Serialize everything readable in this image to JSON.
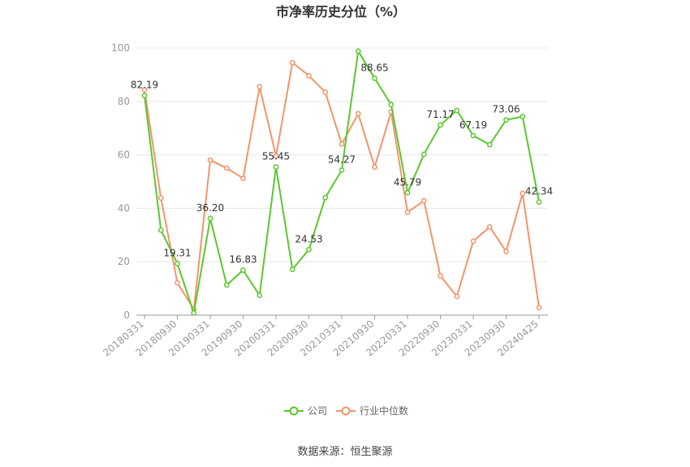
{
  "chart_data": {
    "type": "line",
    "title": "市净率历史分位（%）",
    "source": "数据来源：恒生聚源",
    "ylim": [
      0,
      100
    ],
    "yticks": [
      0,
      20,
      40,
      60,
      80,
      100
    ],
    "grid": true,
    "legend_position": "bottom",
    "x": [
      "20180331",
      "20180630",
      "20180930",
      "20181231",
      "20190331",
      "20190630",
      "20190930",
      "20191231",
      "20200331",
      "20200630",
      "20200930",
      "20201231",
      "20210331",
      "20210630",
      "20210930",
      "20211231",
      "20220331",
      "20220630",
      "20220930",
      "20221231",
      "20230331",
      "20230630",
      "20230930",
      "20231231",
      "20240425"
    ],
    "xtick_labels": [
      "20180331",
      "20180930",
      "20190331",
      "20190930",
      "20200331",
      "20200930",
      "20210331",
      "20210930",
      "20220331",
      "20220930",
      "20230331",
      "20230930",
      "20240425"
    ],
    "series": [
      {
        "name": "公司",
        "color": "#5cc72e",
        "values": [
          82.19,
          31.8,
          19.31,
          0.8,
          36.2,
          11.3,
          16.83,
          7.4,
          55.45,
          17.1,
          24.53,
          44.0,
          54.27,
          98.8,
          88.65,
          78.8,
          45.79,
          60.2,
          71.17,
          76.6,
          67.19,
          63.8,
          73.06,
          74.3,
          42.34
        ],
        "labels": [
          "82.19",
          "",
          "19.31",
          "",
          "36.20",
          "",
          "16.83",
          "",
          "55.45",
          "",
          "24.53",
          "",
          "54.27",
          "",
          "88.65",
          "",
          "45.79",
          "",
          "71.17",
          "",
          "67.19",
          "",
          "73.06",
          "",
          "42.34"
        ]
      },
      {
        "name": "行业中位数",
        "color": "#f4946b",
        "values": [
          84.3,
          43.8,
          12.1,
          2.2,
          58.0,
          55.0,
          51.2,
          85.5,
          59.5,
          94.5,
          89.6,
          83.4,
          64.0,
          75.4,
          55.4,
          76.1,
          38.5,
          42.8,
          14.7,
          7.0,
          27.7,
          33.0,
          23.8,
          45.6,
          2.8
        ]
      }
    ]
  }
}
